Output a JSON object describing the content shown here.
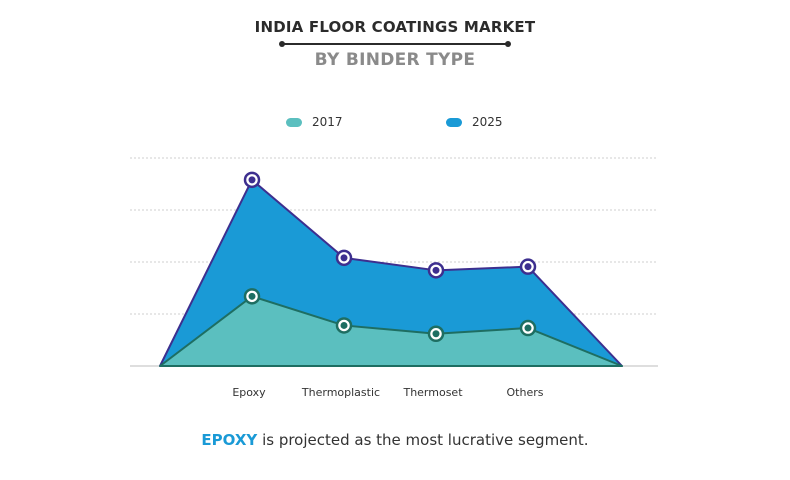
{
  "header": {
    "title": "INDIA FLOOR COATINGS MARKET",
    "subtitle": "BY BINDER TYPE"
  },
  "footer": {
    "highlight": "EPOXY",
    "text": " is projected as the most lucrative segment."
  },
  "colors": {
    "series_2017": "#5bbfbf",
    "series_2025": "#1a9ad6",
    "line_2017": "#1e6e62",
    "line_2025": "#3d2f8f",
    "grid": "#cfcfcf"
  },
  "chart_data": {
    "type": "area",
    "title": "INDIA FLOOR COATINGS MARKET",
    "subtitle": "BY BINDER TYPE",
    "categories": [
      "Epoxy",
      "Thermoplastic",
      "Thermoset",
      "Others"
    ],
    "series": [
      {
        "name": "2017",
        "values": [
          1.34,
          0.78,
          0.62,
          0.73
        ]
      },
      {
        "name": "2025",
        "values": [
          3.58,
          2.08,
          1.84,
          1.91
        ]
      }
    ],
    "ylim": [
      0,
      4
    ],
    "grid": true,
    "legend": "top-center",
    "xlabel": "",
    "ylabel": ""
  }
}
